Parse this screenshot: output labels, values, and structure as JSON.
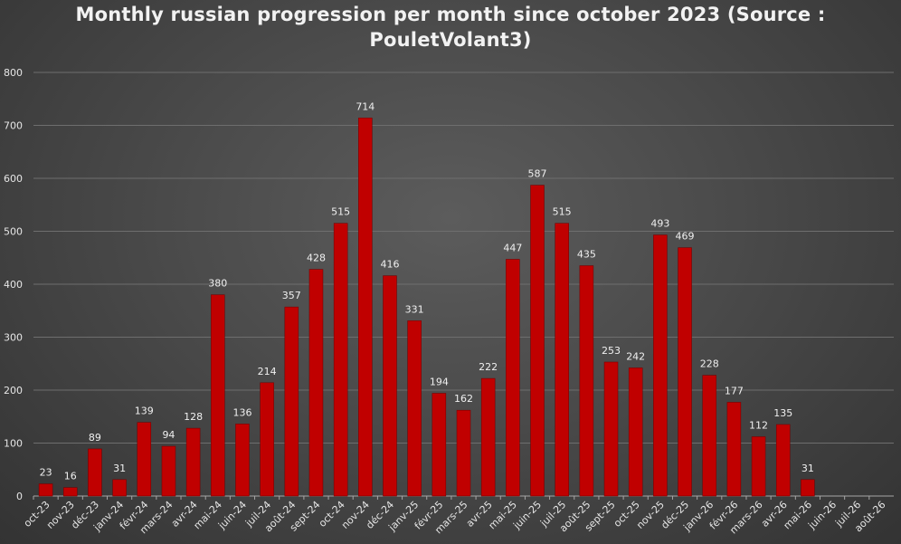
{
  "chart_data": {
    "type": "bar",
    "title_line1": "Monthly russian progression per month since october 2023 (Source :",
    "title_line2": "PouletVolant3)",
    "xlabel": "",
    "ylabel": "",
    "ylim": [
      0,
      800
    ],
    "yticks": [
      "0",
      "100",
      "200",
      "300",
      "400",
      "500",
      "600",
      "700",
      "800"
    ],
    "grid": true,
    "bar_color": "#c00000",
    "categories": [
      "oct-23",
      "nov-23",
      "déc-23",
      "janv-24",
      "févr-24",
      "mars-24",
      "avr-24",
      "mai-24",
      "juin-24",
      "juil-24",
      "août-24",
      "sept-24",
      "oct-24",
      "nov-24",
      "déc-24",
      "janv-25",
      "févr-25",
      "mars-25",
      "avr-25",
      "mai-25",
      "juin-25",
      "juil-25",
      "août-25",
      "sept-25",
      "oct-25",
      "nov-25",
      "déc-25",
      "janv-26",
      "févr-26",
      "mars-26",
      "avr-26",
      "mai-26",
      "juin-26",
      "juil-26",
      "août-26"
    ],
    "values": [
      23,
      16,
      89,
      31,
      139,
      94,
      128,
      380,
      136,
      214,
      357,
      428,
      515,
      714,
      416,
      331,
      194,
      162,
      222,
      447,
      587,
      515,
      435,
      253,
      242,
      493,
      469,
      228,
      177,
      112,
      135,
      31,
      null,
      null,
      null
    ],
    "data_labels": [
      "23",
      "16",
      "89",
      "31",
      "139",
      "94",
      "128",
      "380",
      "136",
      "214",
      "357",
      "428",
      "515",
      "714",
      "416",
      "331",
      "194",
      "162",
      "222",
      "447",
      "587",
      "515",
      "435",
      "253",
      "242",
      "493",
      "469",
      "228",
      "177",
      "112",
      "135",
      "31",
      "",
      "",
      ""
    ]
  }
}
